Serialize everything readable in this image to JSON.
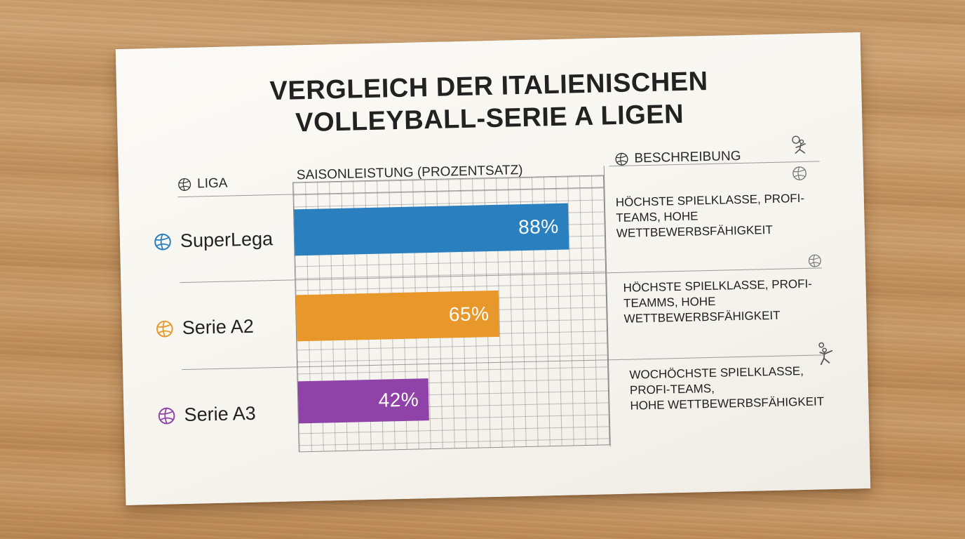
{
  "title_lines": [
    "Vergleich der Italienischen",
    "Volleyball-Serie A Ligen"
  ],
  "headers": {
    "league": "Liga",
    "performance": "Saisonleistung (Prozentsatz)",
    "description": "Beschreibung"
  },
  "colors": {
    "superlega": "#2a7fbf",
    "serie_a2": "#e8972a",
    "serie_a3": "#8f43a8"
  },
  "chart_data": {
    "type": "bar",
    "orientation": "horizontal",
    "categories": [
      "SuperLega",
      "Serie A2",
      "Serie A3"
    ],
    "values": [
      88,
      65,
      42
    ],
    "value_labels": [
      "88%",
      "65%",
      "42%"
    ],
    "xlim": [
      0,
      100
    ],
    "grid": true
  },
  "rows": [
    {
      "league": "SuperLega",
      "value_label": "88%",
      "desc_lines": [
        "Höchste Spielklasse, Profi-",
        "Teams, hohe",
        "Wettbewerbsfähigkeit"
      ]
    },
    {
      "league": "Serie A2",
      "value_label": "65%",
      "desc_lines": [
        "Höchste Spielklasse, Profi-",
        "Teamms, hohe",
        "Wettbewerbsfähigkeit"
      ]
    },
    {
      "league": "Serie A3",
      "value_label": "42%",
      "desc_lines": [
        "Wochöchste Spielklasse,",
        "Profi-Teams,",
        "hohe Wettbewerbsfähigkeit"
      ]
    }
  ],
  "icons": {
    "header_ball": "volleyball-icon",
    "header_corner": "volleyball-player-icon",
    "row_corner_1": "volleyball-icon",
    "row_corner_2": "volleyball-icon",
    "row_corner_3": "volleyball-player-icon"
  }
}
